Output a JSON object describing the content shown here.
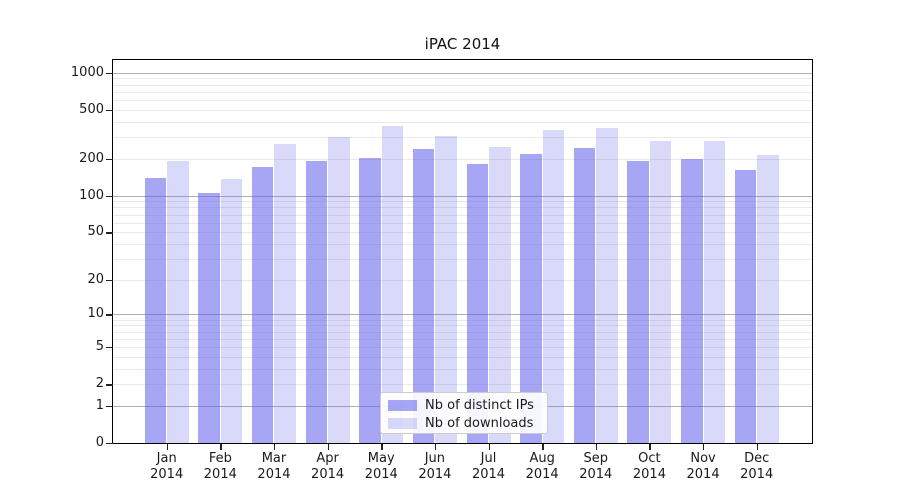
{
  "title": "iPAC 2014",
  "axes": {
    "ytick_labels": [
      "0",
      "1",
      "2",
      "5",
      "10",
      "20",
      "50",
      "100",
      "200",
      "500",
      "1000"
    ],
    "yticks": [
      0,
      1,
      2,
      5,
      10,
      20,
      50,
      100,
      200,
      500,
      1000
    ],
    "major_gridlines": [
      1,
      10,
      100,
      1000
    ],
    "minor_gridlines": [
      2,
      3,
      4,
      5,
      6,
      7,
      8,
      9,
      20,
      30,
      40,
      50,
      60,
      70,
      80,
      90,
      200,
      300,
      400,
      500,
      600,
      700,
      800,
      900
    ],
    "major_grid_color": "#b0b0b0",
    "minor_grid_color": "#e9e9e9",
    "x_year_label": "2014"
  },
  "chart_data": {
    "type": "bar",
    "title": "iPAC 2014",
    "yscale": "log1p",
    "grid": true,
    "legend_position": "lower center",
    "xlabel": "",
    "ylabel": "",
    "yticks": [
      0,
      1,
      2,
      5,
      10,
      20,
      50,
      100,
      200,
      500,
      1000
    ],
    "categories": [
      "Jan",
      "Feb",
      "Mar",
      "Apr",
      "May",
      "Jun",
      "Jul",
      "Aug",
      "Sep",
      "Oct",
      "Nov",
      "Dec"
    ],
    "year_label": "2014",
    "series": [
      {
        "name": "Nb of distinct IPs",
        "color": "rgba(96,96,236,0.56)",
        "values": [
          139,
          105,
          170,
          192,
          202,
          240,
          182,
          218,
          244,
          192,
          200,
          162
        ]
      },
      {
        "name": "Nb of downloads",
        "color": "rgba(96,96,236,0.24)",
        "values": [
          192,
          136,
          262,
          300,
          372,
          308,
          250,
          342,
          355,
          280,
          280,
          215
        ]
      }
    ]
  }
}
